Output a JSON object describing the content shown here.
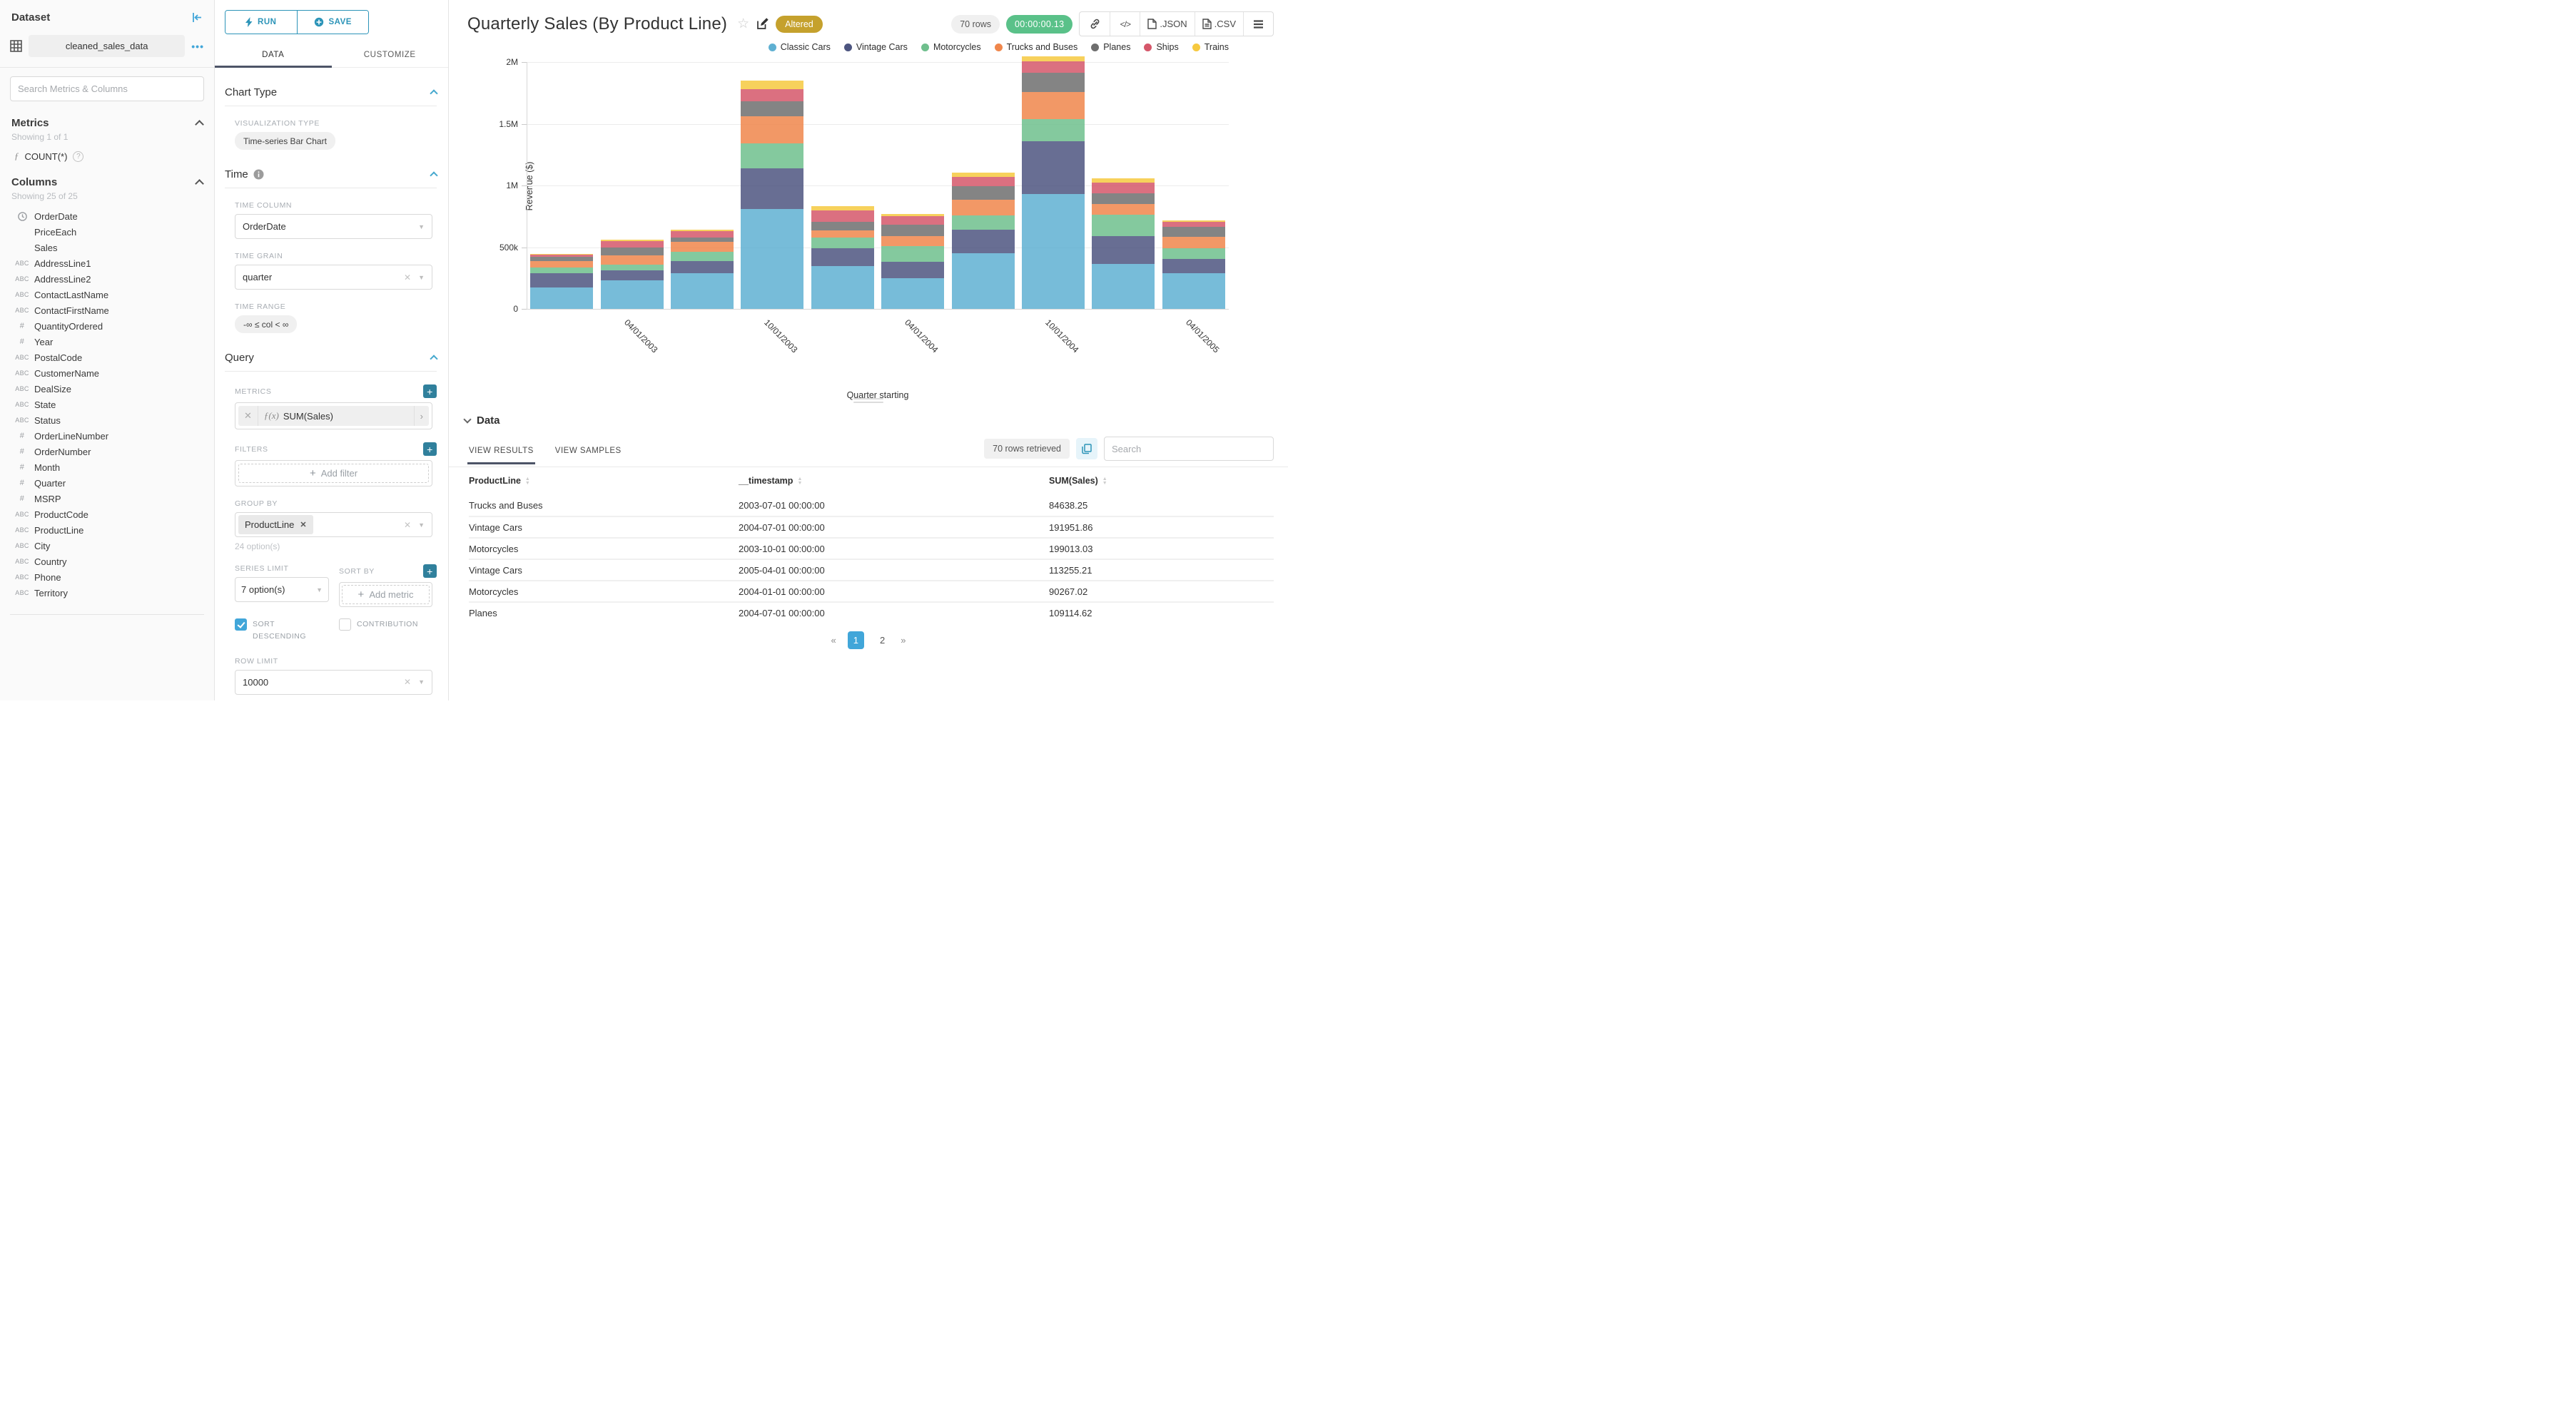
{
  "sidebar": {
    "title": "Dataset",
    "dataset_name": "cleaned_sales_data",
    "search_placeholder": "Search Metrics & Columns",
    "metrics": {
      "title": "Metrics",
      "showing": "Showing 1 of 1",
      "items": [
        {
          "icon": "function",
          "label": "COUNT(*)"
        }
      ]
    },
    "columns": {
      "title": "Columns",
      "showing": "Showing 25 of 25",
      "items": [
        {
          "type": "time",
          "label": "OrderDate"
        },
        {
          "type": "none",
          "label": "PriceEach"
        },
        {
          "type": "none",
          "label": "Sales"
        },
        {
          "type": "text",
          "label": "AddressLine1"
        },
        {
          "type": "text",
          "label": "AddressLine2"
        },
        {
          "type": "text",
          "label": "ContactLastName"
        },
        {
          "type": "text",
          "label": "ContactFirstName"
        },
        {
          "type": "num",
          "label": "QuantityOrdered"
        },
        {
          "type": "num",
          "label": "Year"
        },
        {
          "type": "text",
          "label": "PostalCode"
        },
        {
          "type": "text",
          "label": "CustomerName"
        },
        {
          "type": "text",
          "label": "DealSize"
        },
        {
          "type": "text",
          "label": "State"
        },
        {
          "type": "text",
          "label": "Status"
        },
        {
          "type": "num",
          "label": "OrderLineNumber"
        },
        {
          "type": "num",
          "label": "OrderNumber"
        },
        {
          "type": "num",
          "label": "Month"
        },
        {
          "type": "num",
          "label": "Quarter"
        },
        {
          "type": "num",
          "label": "MSRP"
        },
        {
          "type": "text",
          "label": "ProductCode"
        },
        {
          "type": "text",
          "label": "ProductLine"
        },
        {
          "type": "text",
          "label": "City"
        },
        {
          "type": "text",
          "label": "Country"
        },
        {
          "type": "text",
          "label": "Phone"
        },
        {
          "type": "text",
          "label": "Territory"
        }
      ],
      "type_glyphs": {
        "text": "ABC",
        "num": "#"
      }
    }
  },
  "controls": {
    "run_label": "RUN",
    "save_label": "SAVE",
    "tabs": {
      "data": "DATA",
      "customize": "CUSTOMIZE"
    },
    "chart_type": {
      "title": "Chart Type",
      "viz_label": "VISUALIZATION TYPE",
      "viz_value": "Time-series Bar Chart"
    },
    "time": {
      "title": "Time",
      "time_column_label": "TIME COLUMN",
      "time_column_value": "OrderDate",
      "time_grain_label": "TIME GRAIN",
      "time_grain_value": "quarter",
      "time_range_label": "TIME RANGE",
      "time_range_value": "-∞ ≤ col < ∞"
    },
    "query": {
      "title": "Query",
      "metrics_label": "METRICS",
      "metric_fx": "ƒ(x)",
      "metric_value": "SUM(Sales)",
      "filters_label": "FILTERS",
      "add_filter_label": "Add filter",
      "group_by_label": "GROUP BY",
      "group_by_value": "ProductLine",
      "group_by_note": "24 option(s)",
      "series_limit_label": "SERIES LIMIT",
      "series_limit_value": "7 option(s)",
      "sort_by_label": "SORT BY",
      "add_metric_label": "Add metric",
      "sort_descending_label": "SORT DESCENDING",
      "sort_descending_checked": true,
      "contribution_label": "CONTRIBUTION",
      "contribution_checked": false,
      "row_limit_label": "ROW LIMIT",
      "row_limit_value": "10000"
    }
  },
  "header": {
    "title": "Quarterly Sales (By Product Line)",
    "badge": "Altered",
    "row_count": "70 rows",
    "timer": "00:00:00.13",
    "export_json": ".JSON",
    "export_csv": ".CSV"
  },
  "chart_data": {
    "type": "bar",
    "stacked": true,
    "title": "Quarterly Sales (By Product Line)",
    "ylabel": "Revenue ($)",
    "xlabel": "Quarter starting",
    "ylim": [
      0,
      2000000
    ],
    "grid": true,
    "legend_position": "top-right",
    "y_ticks": [
      {
        "v": 0,
        "label": "0"
      },
      {
        "v": 500000,
        "label": "500k"
      },
      {
        "v": 1000000,
        "label": "1M"
      },
      {
        "v": 1500000,
        "label": "1.5M"
      },
      {
        "v": 2000000,
        "label": "2M"
      }
    ],
    "categories": [
      "01/01/2003",
      "04/01/2003",
      "07/01/2003",
      "10/01/2003",
      "01/01/2004",
      "04/01/2004",
      "07/01/2004",
      "10/01/2004",
      "01/01/2005",
      "04/01/2005"
    ],
    "x_tick_shown_indices": [
      1,
      3,
      5,
      7,
      9
    ],
    "series": [
      {
        "name": "Classic Cars",
        "color": "#5FB0D2",
        "values": [
          175000,
          230000,
          290000,
          810000,
          345000,
          248000,
          450000,
          930000,
          363000,
          290000
        ]
      },
      {
        "name": "Vintage Cars",
        "color": "#4D5580",
        "values": [
          115000,
          85000,
          100000,
          330000,
          145000,
          131000,
          191952,
          430000,
          227000,
          113255
        ]
      },
      {
        "name": "Motorcycles",
        "color": "#6FBF8D",
        "values": [
          45000,
          45000,
          70000,
          199013,
          90267,
          128000,
          113000,
          180000,
          174000,
          88000
        ]
      },
      {
        "name": "Trucks and Buses",
        "color": "#F0864B",
        "values": [
          55000,
          75000,
          84638,
          220000,
          55000,
          83000,
          130000,
          220000,
          87000,
          90000
        ]
      },
      {
        "name": "Planes",
        "color": "#6E6E6E",
        "values": [
          33000,
          60000,
          35000,
          125000,
          70000,
          95000,
          109115,
          155000,
          83000,
          84000
        ]
      },
      {
        "name": "Ships",
        "color": "#D5576A",
        "values": [
          18000,
          52000,
          50000,
          95000,
          95000,
          65000,
          76000,
          90000,
          91000,
          43000
        ]
      },
      {
        "name": "Trains",
        "color": "#F6C93F",
        "values": [
          6000,
          13000,
          15000,
          72000,
          30000,
          17000,
          32000,
          42000,
          32000,
          10000
        ]
      }
    ]
  },
  "data_panel": {
    "title": "Data",
    "tab_results": "VIEW RESULTS",
    "tab_samples": "VIEW SAMPLES",
    "rows_retrieved": "70 rows retrieved",
    "search_placeholder": "Search",
    "table": {
      "columns": [
        "ProductLine",
        "__timestamp",
        "SUM(Sales)"
      ],
      "rows": [
        [
          "Trucks and Buses",
          "2003-07-01 00:00:00",
          "84638.25"
        ],
        [
          "Vintage Cars",
          "2004-07-01 00:00:00",
          "191951.86"
        ],
        [
          "Motorcycles",
          "2003-10-01 00:00:00",
          "199013.03"
        ],
        [
          "Vintage Cars",
          "2005-04-01 00:00:00",
          "113255.21"
        ],
        [
          "Motorcycles",
          "2004-01-01 00:00:00",
          "90267.02"
        ],
        [
          "Planes",
          "2004-07-01 00:00:00",
          "109114.62"
        ]
      ]
    },
    "pagination": {
      "prev": "«",
      "pages": [
        "1",
        "2"
      ],
      "active": "1",
      "next": "»"
    }
  }
}
